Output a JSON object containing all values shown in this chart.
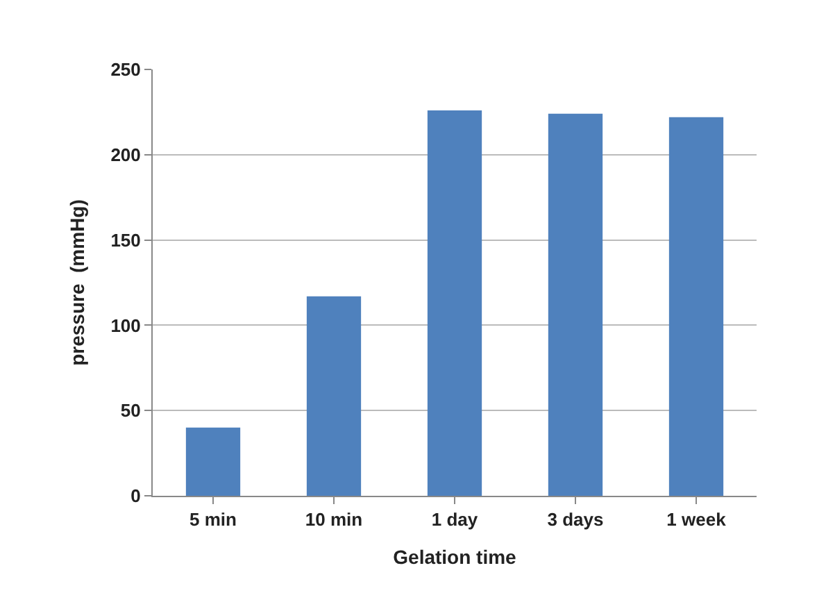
{
  "chart_data": {
    "type": "bar",
    "xlabel": "Gelation time",
    "ylabel": "pressure  (mmHg)",
    "categories": [
      "5 min",
      "10 min",
      "1 day",
      "3 days",
      "1 week"
    ],
    "series": [
      {
        "color": "#4f81bd",
        "values": [
          40,
          117,
          226,
          224,
          222
        ]
      }
    ],
    "ylim": [
      0,
      250
    ],
    "yticks": [
      0,
      50,
      100,
      150,
      200,
      250
    ],
    "grid": "y"
  }
}
